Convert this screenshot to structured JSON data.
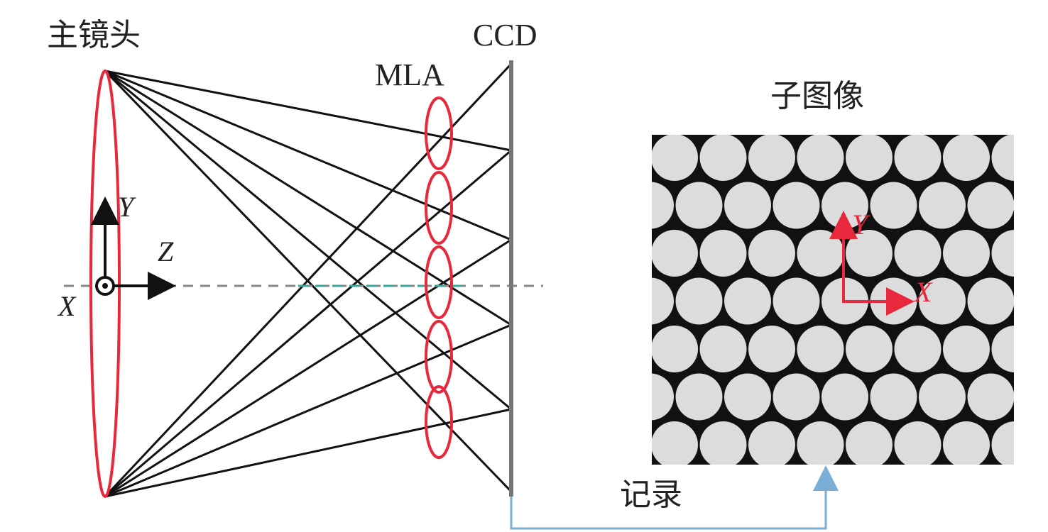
{
  "labels": {
    "main_lens": "主镜头",
    "ccd": "CCD",
    "mla": "MLA",
    "sub_image": "子图像",
    "record": "记录",
    "axis_y": "Y",
    "axis_z": "Z",
    "axis_x": "X",
    "sub_axis_y": "Y",
    "sub_axis_x": "X"
  }
}
